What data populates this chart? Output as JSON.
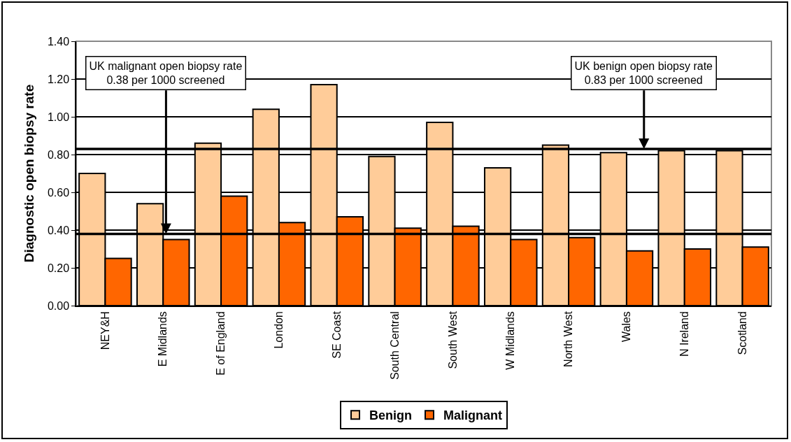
{
  "chart_data": {
    "type": "bar",
    "ylabel": "Diagnostic open biopsy rate",
    "categories": [
      "NEY&H",
      "E Midlands",
      "E of England",
      "London",
      "SE Coast",
      "South Central",
      "South West",
      "W Midlands",
      "North West",
      "Wales",
      "N Ireland",
      "Scotland"
    ],
    "series": [
      {
        "name": "Benign",
        "color": "#ffcc99",
        "values": [
          0.7,
          0.54,
          0.86,
          1.04,
          1.17,
          0.79,
          0.97,
          0.73,
          0.85,
          0.81,
          0.82,
          0.82
        ]
      },
      {
        "name": "Malignant",
        "color": "#ff6600",
        "values": [
          0.25,
          0.35,
          0.58,
          0.44,
          0.47,
          0.41,
          0.42,
          0.35,
          0.36,
          0.29,
          0.3,
          0.31
        ]
      }
    ],
    "ylim": [
      0,
      1.4
    ],
    "yticks": [
      {
        "value": 0,
        "label": "0.00"
      },
      {
        "value": 0.2,
        "label": "0.20"
      },
      {
        "value": 0.4,
        "label": "0.40"
      },
      {
        "value": 0.6,
        "label": "0.60"
      },
      {
        "value": 0.8,
        "label": "0.80"
      },
      {
        "value": 1.0,
        "label": "1.00"
      },
      {
        "value": 1.2,
        "label": "1.20"
      },
      {
        "value": 1.4,
        "label": "1.40"
      }
    ],
    "ref_lines": [
      {
        "axis": "y",
        "value": 0.83,
        "label": "UK benign open biopsy rate\n0.83 per 1000 screened",
        "color": "#000000"
      },
      {
        "axis": "y",
        "value": 0.38,
        "label": "UK malignant open biopsy rate\n0.38 per 1000 screened",
        "color": "#000000"
      }
    ],
    "grid": "y",
    "legend": "bottom"
  }
}
